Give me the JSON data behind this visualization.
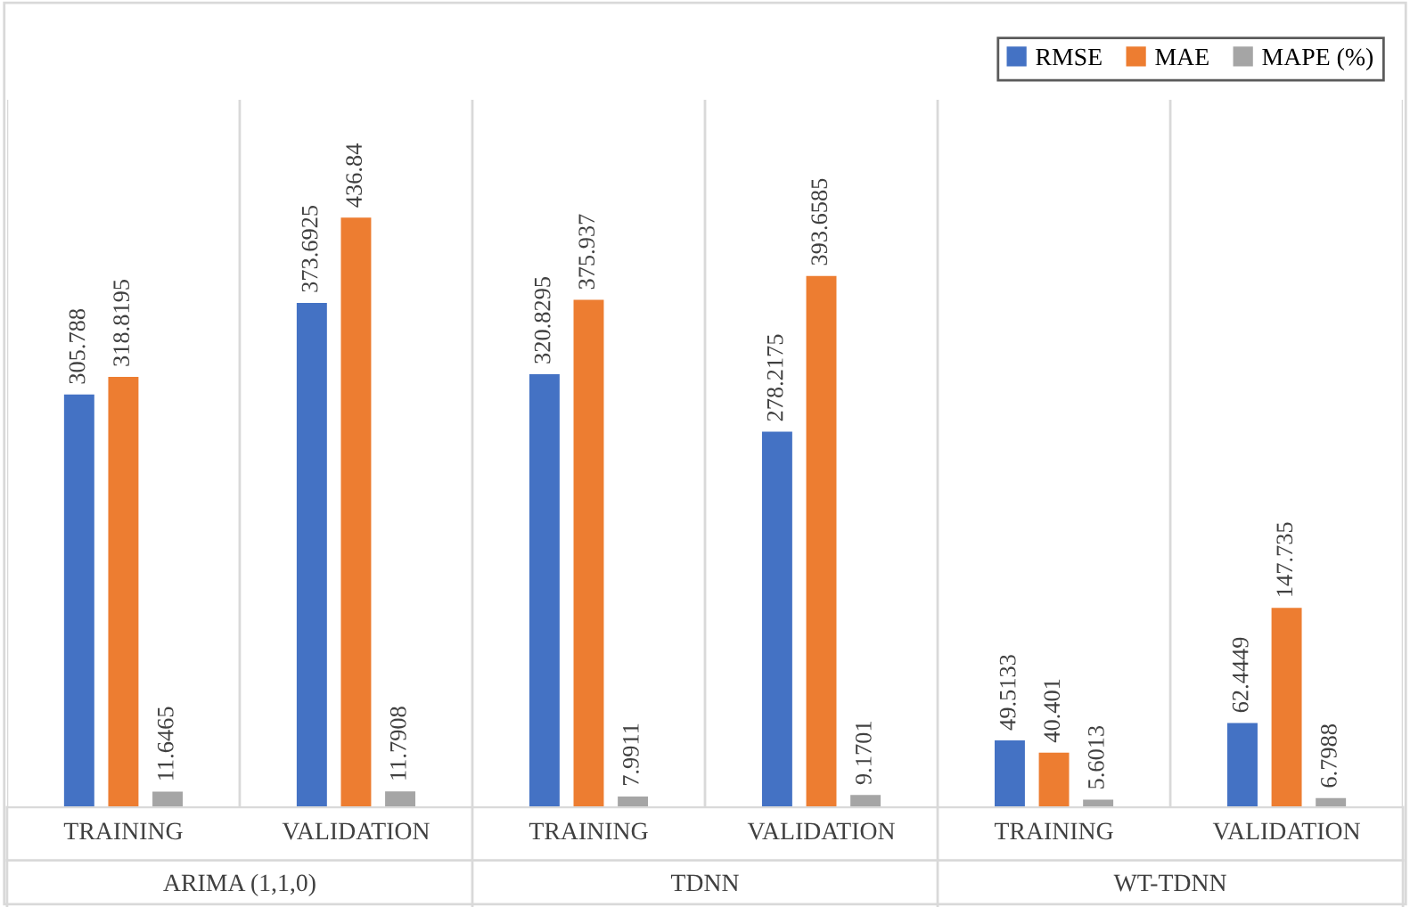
{
  "chart_data": {
    "type": "bar",
    "categories": [
      "TRAINING",
      "VALIDATION",
      "TRAINING",
      "VALIDATION",
      "TRAINING",
      "VALIDATION"
    ],
    "series": [
      {
        "name": "RMSE",
        "color": "#4472c4",
        "values": [
          305.788,
          373.6925,
          320.8295,
          278.2175,
          49.5133,
          62.4449
        ]
      },
      {
        "name": "MAE",
        "color": "#ed7d31",
        "values": [
          318.8195,
          436.84,
          375.937,
          393.6585,
          40.401,
          147.735
        ]
      },
      {
        "name": "MAPE (%)",
        "color": "#a5a5a5",
        "values": [
          11.6465,
          11.7908,
          7.9911,
          9.1701,
          5.6013,
          6.7988
        ]
      }
    ],
    "annotations": [
      "ARIMA (1,1,0)",
      "TDNN",
      "WT-TDNN"
    ],
    "data_labels": true,
    "legend": "top right",
    "grid": "x"
  }
}
